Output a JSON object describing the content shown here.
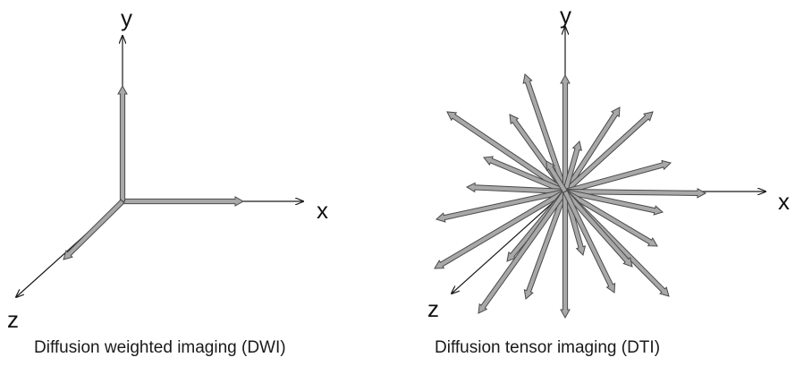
{
  "panels": [
    {
      "id": "dwi",
      "caption": "Diffusion weighted imaging (DWI)",
      "axis_labels": {
        "x": "x",
        "y": "y",
        "z": "z"
      }
    },
    {
      "id": "dti",
      "caption": "Diffusion tensor imaging (DTI)",
      "axis_labels": {
        "x": "x",
        "y": "y",
        "z": "z"
      }
    }
  ],
  "colors": {
    "axis_line": "#1a1a1a",
    "vector_fill": "#a8a8a8",
    "vector_stroke": "#4a4a4a"
  }
}
